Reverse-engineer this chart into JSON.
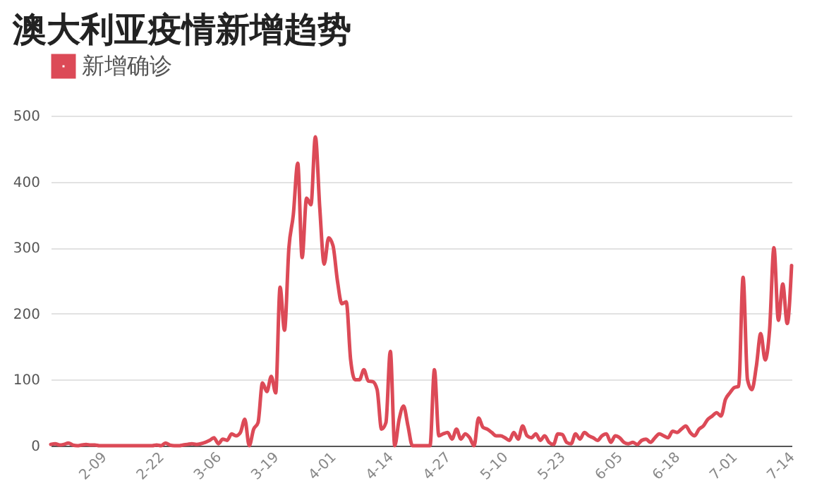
{
  "chart_data": {
    "type": "line",
    "title": "澳大利亚疫情新增趋势",
    "legend": "top left",
    "grid": "y",
    "line_style": "solid",
    "x": [
      "--01-28",
      "--01-29",
      "--01-30",
      "--01-31",
      "--02-01",
      "--02-02",
      "--02-03",
      "--02-04",
      "--02-05",
      "--02-06",
      "--02-07",
      "--02-08",
      "--02-09",
      "--02-10",
      "--02-11",
      "--02-12",
      "--02-13",
      "--02-14",
      "--02-15",
      "--02-16",
      "--02-17",
      "--02-18",
      "--02-19",
      "--02-20",
      "--02-21",
      "--02-22",
      "--02-23",
      "--02-24",
      "--02-25",
      "--02-26",
      "--02-27",
      "--02-28",
      "--02-29",
      "--03-01",
      "--03-02",
      "--03-03",
      "--03-04",
      "--03-05",
      "--03-06",
      "--03-07",
      "--03-08",
      "--03-09",
      "--03-10",
      "--03-11",
      "--03-12",
      "--03-13",
      "--03-14",
      "--03-15",
      "--03-16",
      "--03-17",
      "--03-18",
      "--03-19",
      "--03-20",
      "--03-21",
      "--03-22",
      "--03-23",
      "--03-24",
      "--03-25",
      "--03-26",
      "--03-27",
      "--03-28",
      "--03-29",
      "--03-30",
      "--03-31",
      "--04-01",
      "--04-02",
      "--04-03",
      "--04-04",
      "--04-05",
      "--04-06",
      "--04-07",
      "--04-08",
      "--04-09",
      "--04-10",
      "--04-11",
      "--04-12",
      "--04-13",
      "--04-14",
      "--04-15",
      "--04-16",
      "--04-17",
      "--04-18",
      "--04-19",
      "--04-20",
      "--04-21",
      "--04-22",
      "--04-23",
      "--04-24",
      "--04-25",
      "--04-26",
      "--04-27",
      "--04-28",
      "--04-29",
      "--04-30",
      "--05-01",
      "--05-02",
      "--05-03",
      "--05-04",
      "--05-05",
      "--05-06",
      "--05-07",
      "--05-08",
      "--05-09",
      "--05-10",
      "--05-11",
      "--05-12",
      "--05-13",
      "--05-14",
      "--05-15",
      "--05-16",
      "--05-17",
      "--05-18",
      "--05-19",
      "--05-20",
      "--05-21",
      "--05-22",
      "--05-23",
      "--05-24",
      "--05-25",
      "--05-26",
      "--05-27",
      "--05-28",
      "--05-29",
      "--05-30",
      "--05-31",
      "--06-01",
      "--06-02",
      "--06-03",
      "--06-04",
      "--06-05",
      "--06-06",
      "--06-07",
      "--06-08",
      "--06-09",
      "--06-10",
      "--06-11",
      "--06-12",
      "--06-13",
      "--06-14",
      "--06-15",
      "--06-16",
      "--06-17",
      "--06-18",
      "--06-19",
      "--06-20",
      "--06-21",
      "--06-22",
      "--06-23",
      "--06-24",
      "--06-25",
      "--06-26",
      "--06-27",
      "--06-28",
      "--06-29",
      "--06-30",
      "--07-01",
      "--07-02",
      "--07-03",
      "--07-04",
      "--07-05",
      "--07-06",
      "--07-07",
      "--07-08",
      "--07-09",
      "--07-10",
      "--07-11",
      "--07-12",
      "--07-13",
      "--07-14"
    ],
    "series": [
      {
        "name": "新增确诊",
        "color": "#dc4a57",
        "values": [
          2,
          3,
          1,
          2,
          4,
          1,
          0,
          1,
          2,
          1,
          1,
          0,
          0,
          0,
          0,
          0,
          0,
          0,
          0,
          0,
          0,
          0,
          0,
          0,
          1,
          0,
          4,
          1,
          0,
          0,
          1,
          2,
          3,
          2,
          3,
          5,
          8,
          12,
          3,
          10,
          8,
          18,
          15,
          20,
          40,
          0,
          25,
          35,
          95,
          82,
          105,
          80,
          240,
          175,
          300,
          350,
          428,
          285,
          375,
          365,
          468,
          360,
          275,
          315,
          303,
          250,
          215,
          218,
          130,
          100,
          100,
          115,
          98,
          97,
          85,
          25,
          35,
          143,
          0,
          40,
          60,
          30,
          0,
          0,
          0,
          0,
          0,
          115,
          15,
          18,
          20,
          10,
          25,
          10,
          18,
          12,
          0,
          42,
          28,
          25,
          20,
          15,
          15,
          12,
          8,
          20,
          10,
          30,
          15,
          12,
          18,
          8,
          15,
          5,
          2,
          18,
          17,
          5,
          3,
          18,
          10,
          20,
          15,
          12,
          8,
          15,
          18,
          5,
          15,
          12,
          5,
          3,
          5,
          2,
          8,
          10,
          5,
          12,
          18,
          15,
          12,
          22,
          20,
          25,
          30,
          20,
          15,
          25,
          30,
          40,
          45,
          50,
          45,
          70,
          80,
          88,
          90,
          255,
          100,
          85,
          120,
          170,
          130,
          175,
          300,
          190,
          245,
          185,
          273
        ]
      }
    ],
    "xlim": [
      "--01-28",
      "--07-14"
    ],
    "xticks": [
      {
        "value": "--02-09",
        "label": "2-09"
      },
      {
        "value": "--02-22",
        "label": "2-22"
      },
      {
        "value": "--03-06",
        "label": "3-06"
      },
      {
        "value": "--03-19",
        "label": "3-19"
      },
      {
        "value": "--04-01",
        "label": "4-01"
      },
      {
        "value": "--04-14",
        "label": "4-14"
      },
      {
        "value": "--04-27",
        "label": "4-27"
      },
      {
        "value": "--05-10",
        "label": "5-10"
      },
      {
        "value": "--05-23",
        "label": "5-23"
      },
      {
        "value": "--06-05",
        "label": "6-05"
      },
      {
        "value": "--06-18",
        "label": "6-18"
      },
      {
        "value": "--07-01",
        "label": "7-01"
      },
      {
        "value": "--07-14",
        "label": "7-14"
      }
    ],
    "ylim": [
      0,
      500
    ],
    "yticks": [
      0,
      100,
      200,
      300,
      400,
      500
    ]
  }
}
